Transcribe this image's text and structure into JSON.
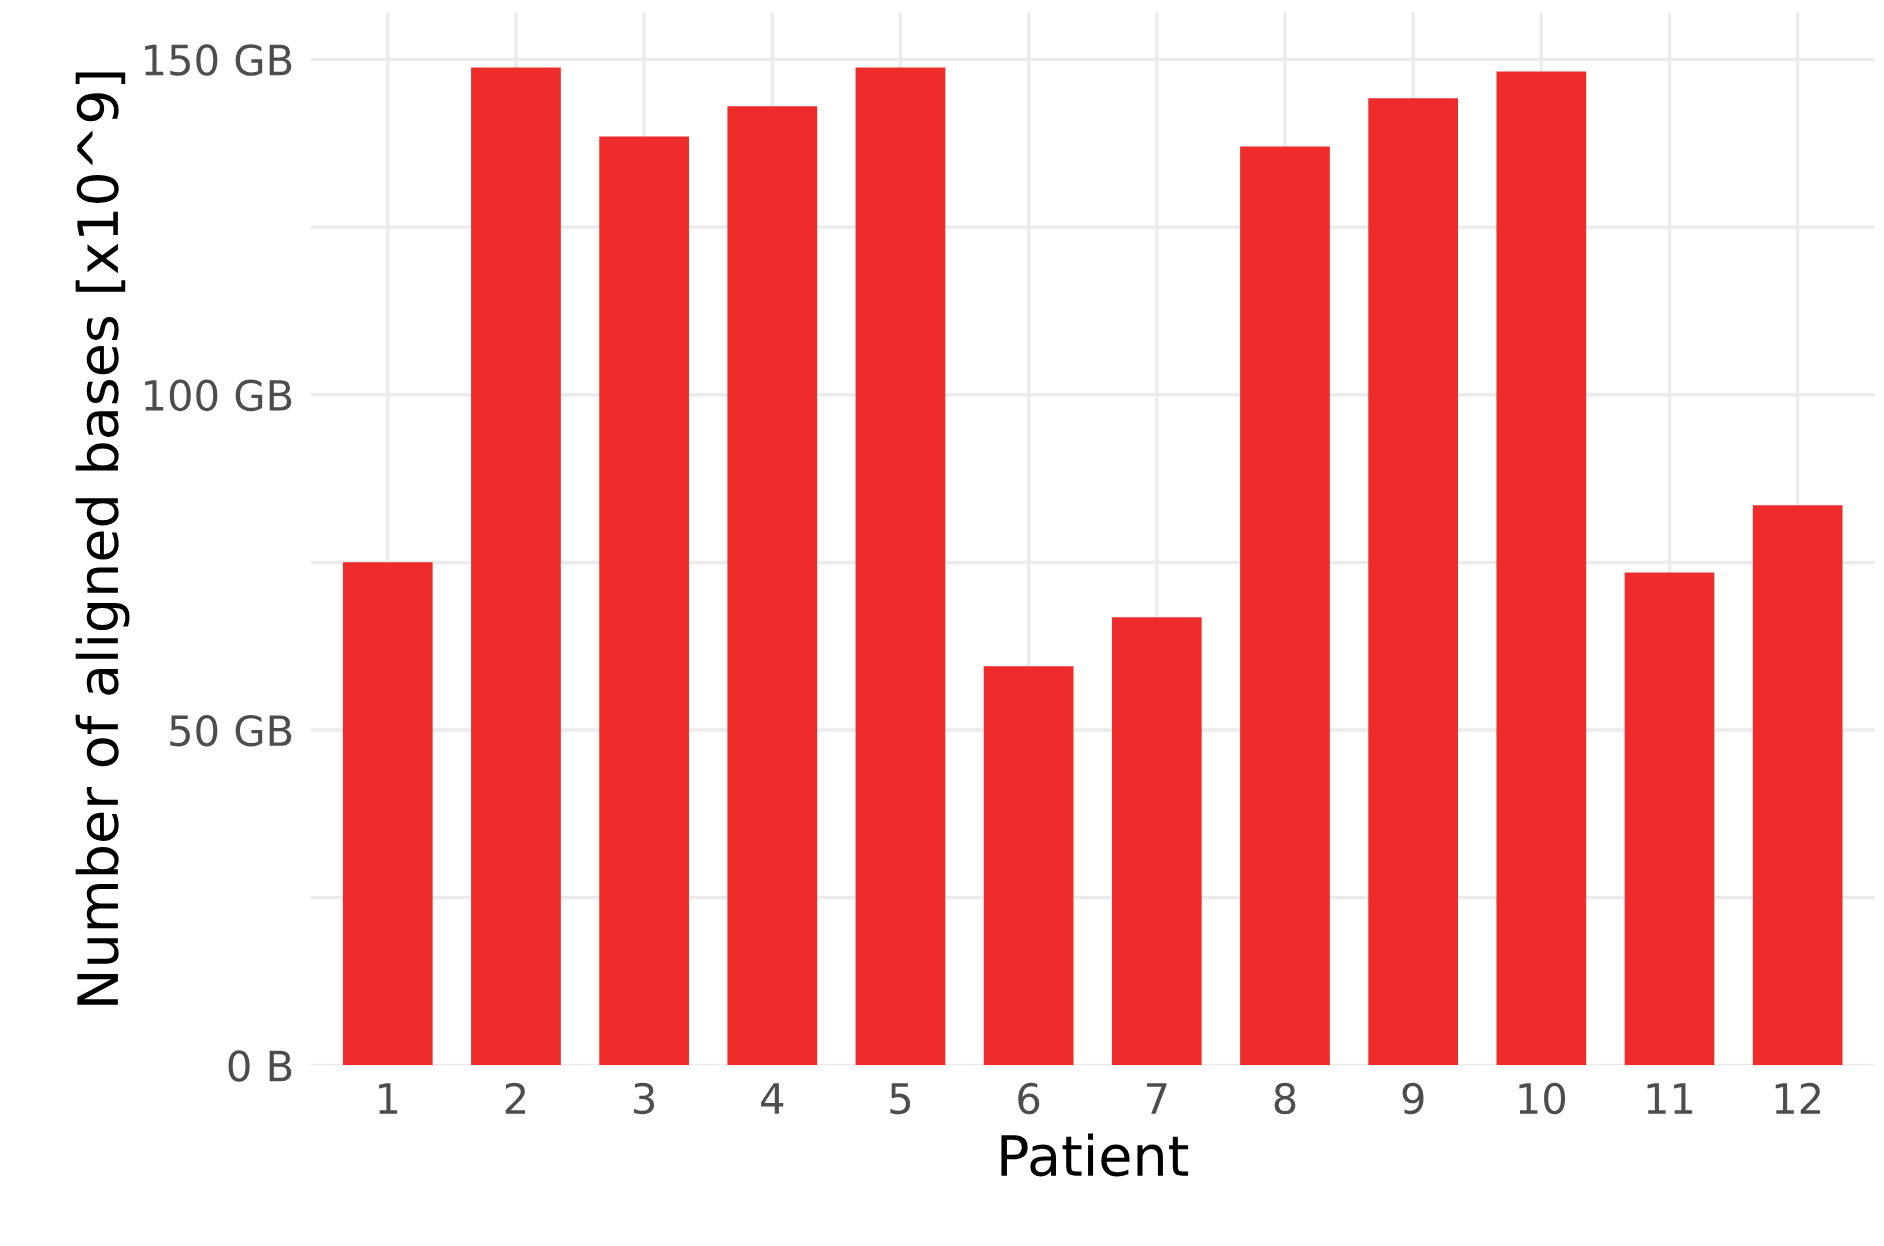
{
  "chart_data": {
    "type": "bar",
    "xlabel": "Patient",
    "ylabel": "Number of aligned bases [x10^9]",
    "categories": [
      "1",
      "2",
      "3",
      "4",
      "5",
      "6",
      "7",
      "8",
      "9",
      "10",
      "11",
      "12"
    ],
    "values": [
      75.0,
      148.8,
      138.5,
      143.0,
      148.8,
      59.5,
      66.8,
      137.0,
      144.2,
      148.2,
      73.5,
      83.5
    ],
    "color": "#ee2c2c",
    "ylim": [
      0,
      157
    ],
    "yticks": [
      {
        "value": 0,
        "label": "0 B"
      },
      {
        "value": 25,
        "label": null
      },
      {
        "value": 50,
        "label": "50 GB"
      },
      {
        "value": 75,
        "label": null
      },
      {
        "value": 100,
        "label": "100 GB"
      },
      {
        "value": 125,
        "label": null
      },
      {
        "value": 150,
        "label": "150 GB"
      }
    ],
    "grid": true
  }
}
